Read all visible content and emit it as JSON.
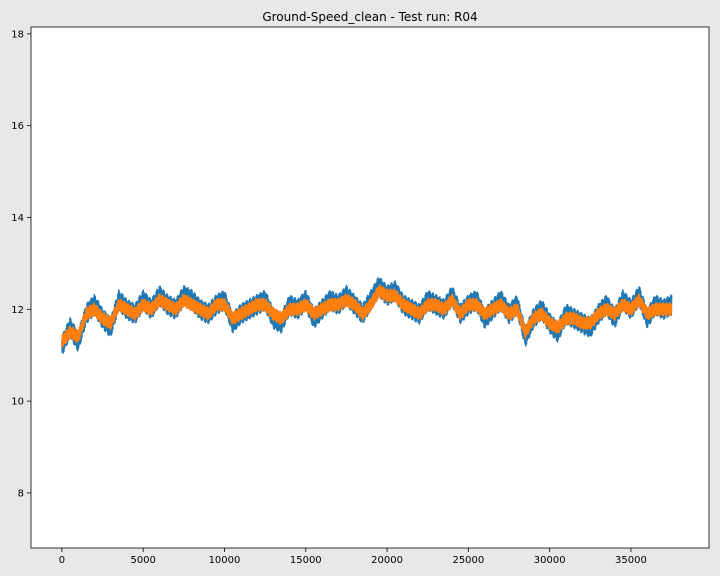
{
  "chart_data": {
    "type": "line",
    "title": "Ground-Speed_clean - Test run: R04",
    "xlabel": "",
    "ylabel": "",
    "xlim": [
      -1900,
      39800
    ],
    "ylim": [
      6.8,
      18.15
    ],
    "x_ticks": [
      0,
      5000,
      10000,
      15000,
      20000,
      25000,
      30000,
      35000
    ],
    "y_ticks": [
      8,
      10,
      12,
      14,
      16,
      18
    ],
    "grid": false,
    "legend": "none",
    "series": [
      {
        "color": "#1f77b4",
        "x": [
          0,
          500,
          1000,
          1500,
          2000,
          2500,
          3000,
          3500,
          4000,
          4500,
          5000,
          5500,
          6000,
          6500,
          7000,
          7500,
          8000,
          8500,
          9000,
          9500,
          10000,
          10500,
          11000,
          11500,
          12000,
          12500,
          13000,
          13500,
          14000,
          14500,
          15000,
          15500,
          16000,
          16500,
          17000,
          17500,
          18000,
          18500,
          19000,
          19500,
          20000,
          20500,
          21000,
          21500,
          22000,
          22500,
          23000,
          23500,
          24000,
          24500,
          25000,
          25500,
          26000,
          26500,
          27000,
          27500,
          28000,
          28500,
          29000,
          29500,
          30000,
          30500,
          31000,
          31500,
          32000,
          32500,
          33000,
          33500,
          34000,
          34500,
          35000,
          35500,
          36000,
          36500,
          37000,
          37500
        ],
        "y": [
          11.2,
          11.6,
          11.3,
          11.9,
          12.1,
          11.8,
          11.6,
          12.2,
          12.0,
          11.9,
          12.2,
          12.0,
          12.3,
          12.1,
          12.0,
          12.3,
          12.2,
          12.0,
          11.9,
          12.1,
          12.2,
          11.7,
          11.9,
          12.0,
          12.1,
          12.2,
          11.8,
          11.7,
          12.1,
          12.0,
          12.2,
          11.8,
          12.0,
          12.2,
          12.1,
          12.3,
          12.1,
          11.9,
          12.2,
          12.5,
          12.3,
          12.4,
          12.1,
          12.0,
          11.9,
          12.2,
          12.1,
          12.0,
          12.3,
          11.9,
          12.1,
          12.2,
          11.8,
          12.0,
          12.2,
          11.9,
          12.1,
          11.4,
          11.8,
          12.0,
          11.7,
          11.5,
          11.9,
          11.8,
          11.7,
          11.6,
          11.9,
          12.1,
          11.8,
          12.2,
          12.0,
          12.3,
          11.8,
          12.1,
          12.0,
          12.1
        ],
        "wiggle": 0.22
      },
      {
        "color": "#ff7f0e",
        "x": [
          0,
          500,
          1000,
          1500,
          2000,
          2500,
          3000,
          3500,
          4000,
          4500,
          5000,
          5500,
          6000,
          6500,
          7000,
          7500,
          8000,
          8500,
          9000,
          9500,
          10000,
          10500,
          11000,
          11500,
          12000,
          12500,
          13000,
          13500,
          14000,
          14500,
          15000,
          15500,
          16000,
          16500,
          17000,
          17500,
          18000,
          18500,
          19000,
          19500,
          20000,
          20500,
          21000,
          21500,
          22000,
          22500,
          23000,
          23500,
          24000,
          24500,
          25000,
          25500,
          26000,
          26500,
          27000,
          27500,
          28000,
          28500,
          29000,
          29500,
          30000,
          30500,
          31000,
          31500,
          32000,
          32500,
          33000,
          33500,
          34000,
          34500,
          35000,
          35500,
          36000,
          36500,
          37000,
          37500
        ],
        "y": [
          11.3,
          11.5,
          11.4,
          11.9,
          12.0,
          11.8,
          11.7,
          12.1,
          12.0,
          11.9,
          12.1,
          12.0,
          12.2,
          12.1,
          12.0,
          12.2,
          12.1,
          12.0,
          11.9,
          12.1,
          12.1,
          11.8,
          11.9,
          12.0,
          12.1,
          12.1,
          11.9,
          11.8,
          12.0,
          12.0,
          12.1,
          11.9,
          12.0,
          12.1,
          12.1,
          12.2,
          12.1,
          11.9,
          12.1,
          12.4,
          12.3,
          12.3,
          12.1,
          12.0,
          11.9,
          12.1,
          12.1,
          12.0,
          12.2,
          11.9,
          12.1,
          12.1,
          11.9,
          12.0,
          12.1,
          11.9,
          12.0,
          11.5,
          11.8,
          11.9,
          11.7,
          11.6,
          11.8,
          11.8,
          11.7,
          11.7,
          11.9,
          12.0,
          11.9,
          12.1,
          12.0,
          12.2,
          11.9,
          12.0,
          12.0,
          12.0
        ],
        "wiggle": 0.14
      }
    ]
  }
}
